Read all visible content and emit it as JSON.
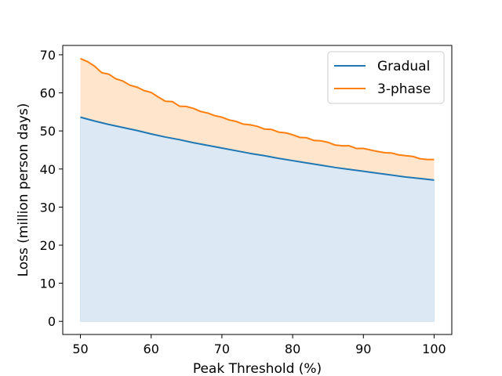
{
  "chart_data": {
    "type": "line",
    "title": "",
    "xlabel": "Peak Threshold (%)",
    "ylabel": "Loss (million person days)",
    "xlim": [
      47.5,
      102.5
    ],
    "ylim": [
      -3.45,
      72.45
    ],
    "xticks": [
      50,
      60,
      70,
      80,
      90,
      100
    ],
    "yticks": [
      0,
      10,
      20,
      30,
      40,
      50,
      60,
      70
    ],
    "grid": false,
    "legend_position": "top-right",
    "fill": [
      {
        "between": [
          "zero",
          "Gradual"
        ],
        "color": "#dce9f5"
      },
      {
        "between": [
          "Gradual",
          "3-phase"
        ],
        "color": "#ffe5cc"
      }
    ],
    "series": [
      {
        "name": "Gradual",
        "color": "#1f77b4",
        "x": [
          50,
          52,
          54,
          56,
          58,
          60,
          62,
          64,
          66,
          68,
          70,
          72,
          74,
          76,
          78,
          80,
          82,
          84,
          86,
          88,
          90,
          92,
          94,
          96,
          98,
          100
        ],
        "values": [
          53.6,
          52.6,
          51.7,
          50.9,
          50.1,
          49.2,
          48.4,
          47.7,
          46.9,
          46.2,
          45.5,
          44.8,
          44.1,
          43.5,
          42.8,
          42.2,
          41.6,
          41.0,
          40.4,
          39.9,
          39.4,
          38.9,
          38.4,
          37.9,
          37.5,
          37.1
        ]
      },
      {
        "name": "3-phase",
        "color": "#ff7f0e",
        "x": [
          50,
          51,
          52,
          53,
          54,
          55,
          56,
          57,
          58,
          59,
          60,
          61,
          62,
          63,
          64,
          65,
          66,
          67,
          68,
          69,
          70,
          71,
          72,
          73,
          74,
          75,
          76,
          77,
          78,
          79,
          80,
          81,
          82,
          83,
          84,
          85,
          86,
          87,
          88,
          89,
          90,
          91,
          92,
          93,
          94,
          95,
          96,
          97,
          98,
          99,
          100
        ],
        "values": [
          69.0,
          68.2,
          67.0,
          65.3,
          64.9,
          63.7,
          63.1,
          62.0,
          61.5,
          60.6,
          60.1,
          58.9,
          57.8,
          57.7,
          56.5,
          56.4,
          55.9,
          55.1,
          54.7,
          54.0,
          53.6,
          52.9,
          52.5,
          51.8,
          51.6,
          51.2,
          50.5,
          50.4,
          49.7,
          49.5,
          49.0,
          48.3,
          48.2,
          47.5,
          47.4,
          47.0,
          46.3,
          46.1,
          46.1,
          45.4,
          45.4,
          45.0,
          44.6,
          44.3,
          44.2,
          43.7,
          43.5,
          43.3,
          42.7,
          42.5,
          42.5
        ]
      }
    ]
  }
}
